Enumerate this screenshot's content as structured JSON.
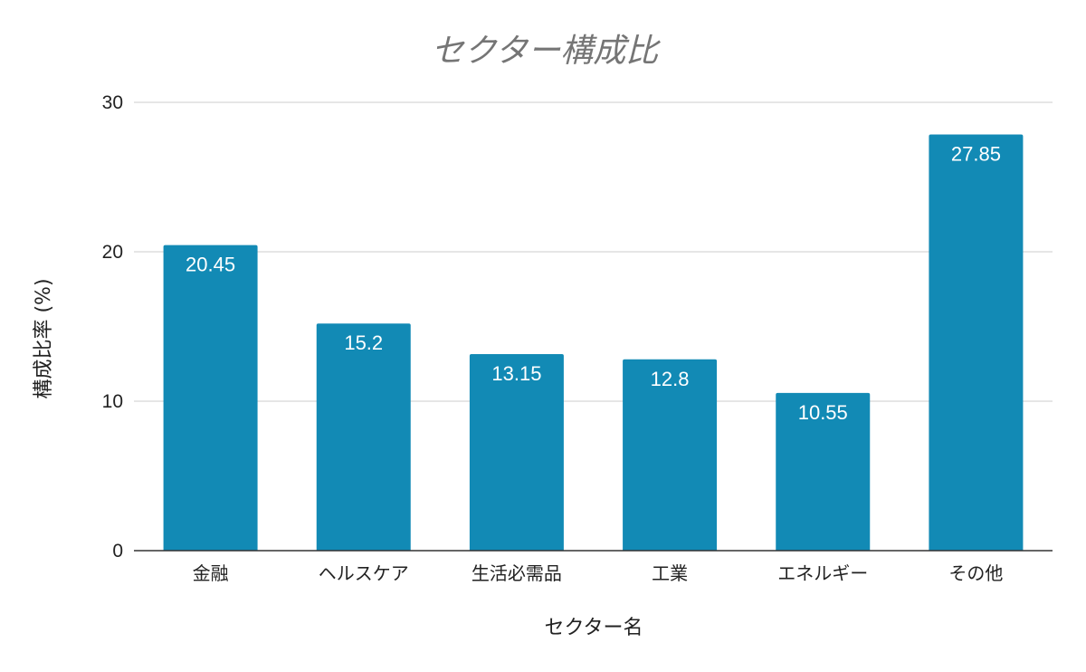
{
  "chart_data": {
    "type": "bar",
    "title": "セクター構成比",
    "xlabel": "セクター名",
    "ylabel": "構成比率 (%)",
    "categories": [
      "金融",
      "ヘルスケア",
      "生活必需品",
      "工業",
      "エネルギー",
      "その他"
    ],
    "values": [
      20.45,
      15.2,
      13.15,
      12.8,
      10.55,
      27.85
    ],
    "data_labels": [
      "20.45",
      "15.2",
      "13.15",
      "12.8",
      "10.55",
      "27.85"
    ],
    "ylim": [
      0,
      30
    ],
    "yticks": [
      0,
      10,
      20,
      30
    ],
    "ytick_labels": [
      "0",
      "10",
      "20",
      "30"
    ],
    "grid": true,
    "legend": "none",
    "bar_color": "#128ab5"
  }
}
